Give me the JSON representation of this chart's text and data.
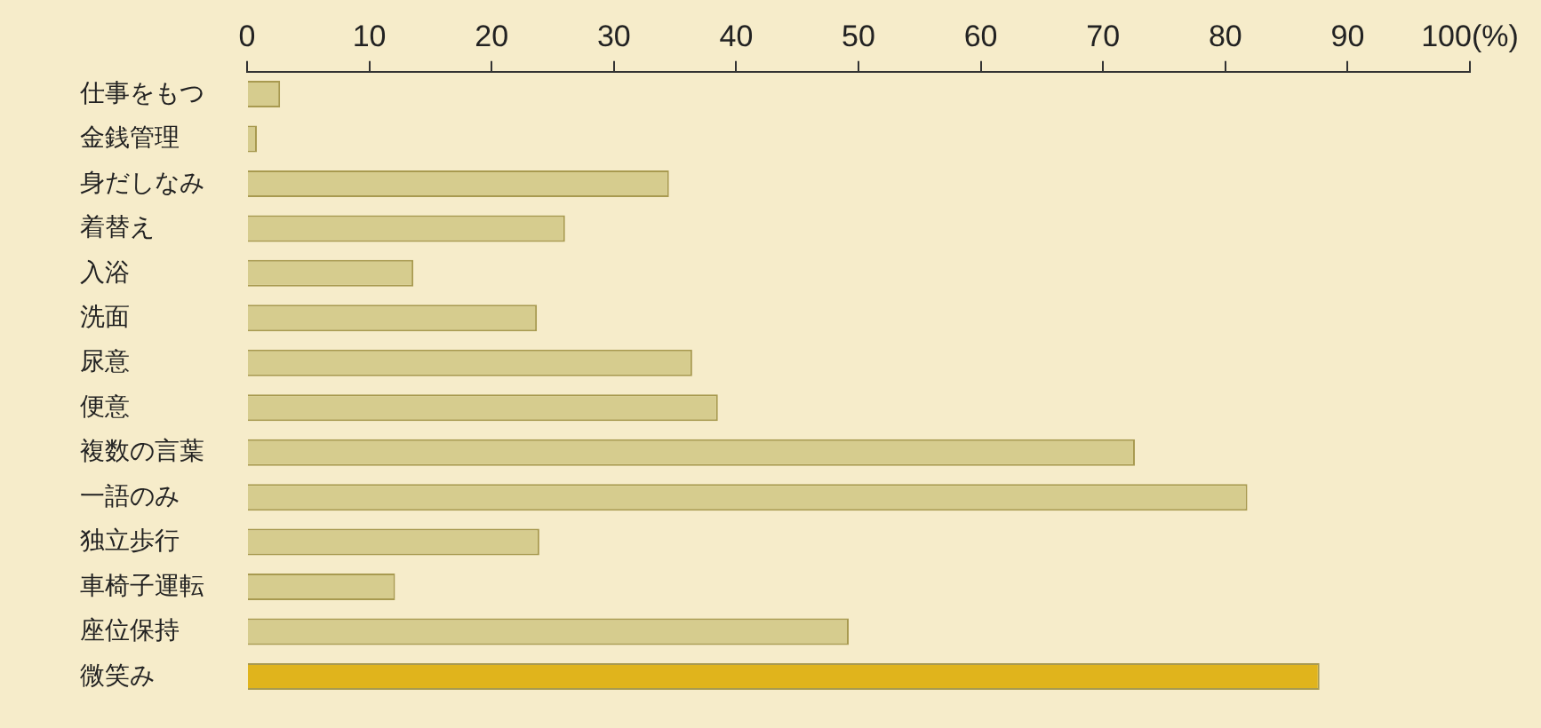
{
  "chart_data": {
    "type": "bar",
    "orientation": "horizontal",
    "categories": [
      "仕事をもつ",
      "金銭管理",
      "身だしなみ",
      "着替え",
      "入浴",
      "洗面",
      "尿意",
      "便意",
      "複数の言葉",
      "一語のみ",
      "独立歩行",
      "車椅子運転",
      "座位保持",
      "微笑み"
    ],
    "values": [
      2.7,
      0.8,
      34.5,
      26,
      13.6,
      23.7,
      36.4,
      38.5,
      72.6,
      81.8,
      23.9,
      12.1,
      49.2,
      87.7
    ],
    "colors": [
      "#d6cc8e",
      "#d6cc8e",
      "#d6cc8e",
      "#d6cc8e",
      "#d6cc8e",
      "#d6cc8e",
      "#d6cc8e",
      "#d6cc8e",
      "#d6cc8e",
      "#d6cc8e",
      "#d6cc8e",
      "#d6cc8e",
      "#d6cc8e",
      "#e0b41c"
    ],
    "xlim": [
      0,
      100
    ],
    "xticks": [
      0,
      10,
      20,
      30,
      40,
      50,
      60,
      70,
      80,
      90,
      {
        "value": 100,
        "label": "100(%)"
      }
    ],
    "grid": false,
    "legend": false
  }
}
